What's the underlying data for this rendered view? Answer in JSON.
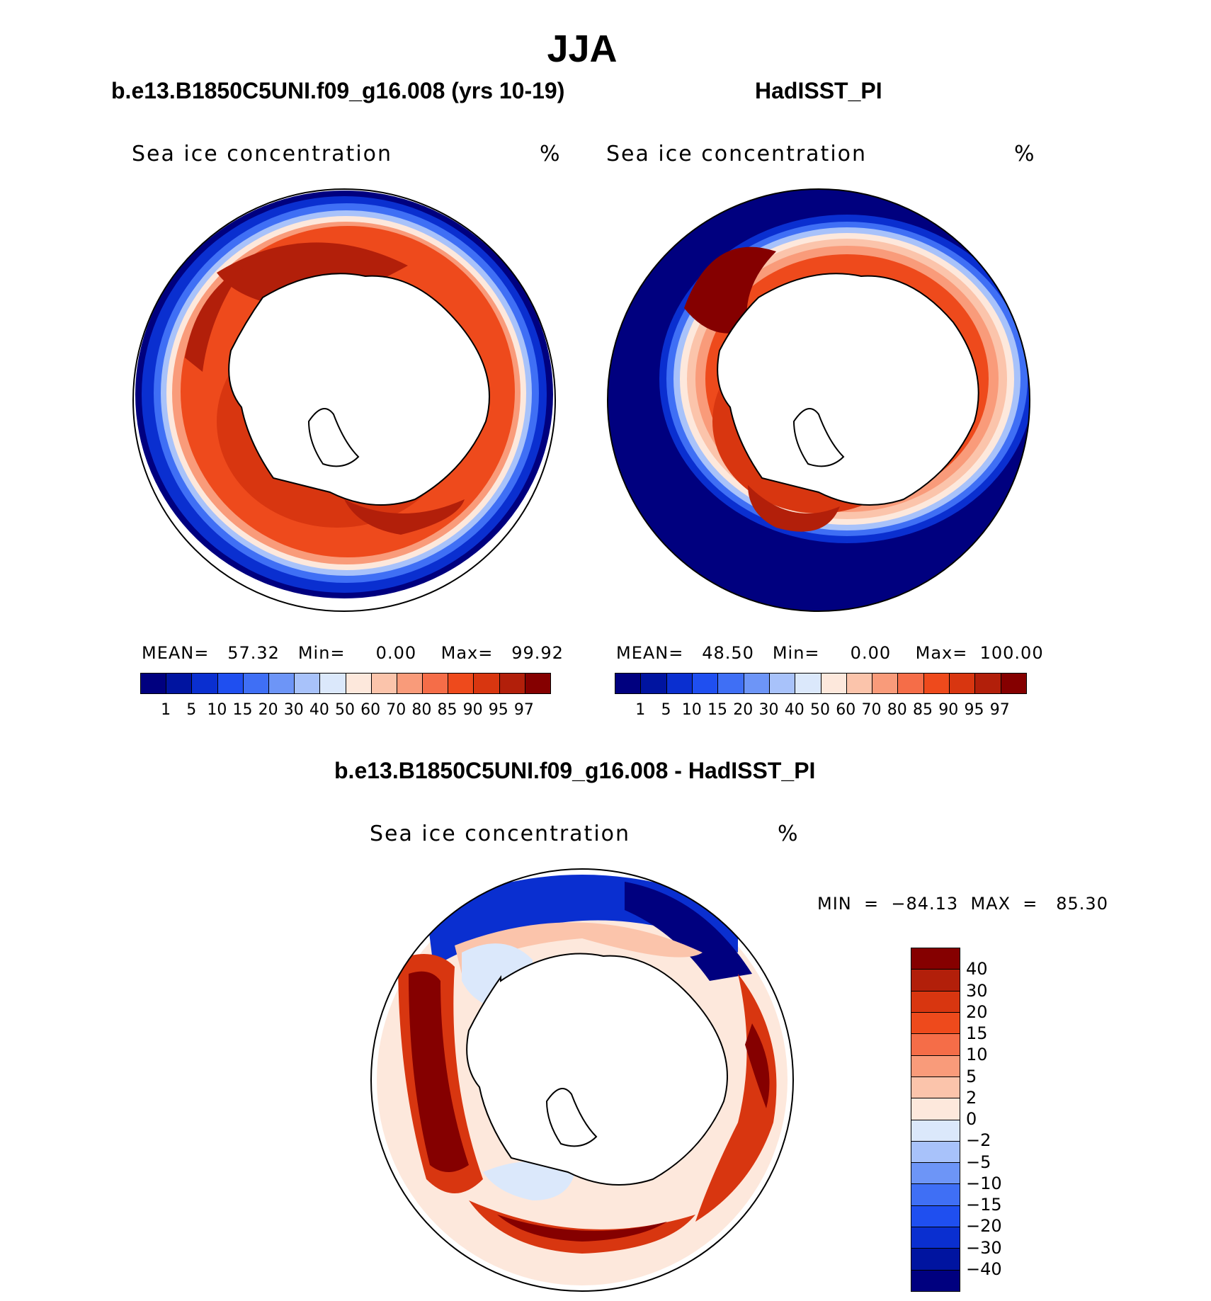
{
  "figure": {
    "title": "JJA",
    "panel_left": {
      "subtitle": "b.e13.B1850C5UNI.f09_g16.008 (yrs 10-19)",
      "variable": "Sea ice concentration",
      "units": "%",
      "stats": "MEAN=   57.32   Min=     0.00    Max=   99.92"
    },
    "panel_right": {
      "subtitle": "HadISST_PI",
      "variable": "Sea ice concentration",
      "units": "%",
      "stats": "MEAN=   48.50   Min=     0.00    Max=  100.00"
    },
    "panel_diff": {
      "subtitle": "b.e13.B1850C5UNI.f09_g16.008 - HadISST_PI",
      "variable": "Sea ice concentration",
      "units": "%",
      "stats": "MIN  =  −84.13  MAX  =   85.30"
    }
  },
  "colorbar_abs": {
    "ticks": [
      "1",
      "5",
      "10",
      "15",
      "20",
      "30",
      "40",
      "50",
      "60",
      "70",
      "80",
      "85",
      "90",
      "95",
      "97"
    ],
    "colors": [
      "#00007f",
      "#0014a0",
      "#0a2fd0",
      "#1f4ff0",
      "#3f6ff5",
      "#6d95f7",
      "#a8c2fa",
      "#dbe8fb",
      "#fde8dc",
      "#fbc4ab",
      "#f99b7a",
      "#f56d48",
      "#ee4a1c",
      "#d83610",
      "#b21f0a",
      "#850000"
    ]
  },
  "colorbar_diff": {
    "ticks": [
      "40",
      "30",
      "20",
      "15",
      "10",
      "5",
      "2",
      "0",
      "−2",
      "−5",
      "−10",
      "−15",
      "−20",
      "−30",
      "−40"
    ],
    "colors": [
      "#850000",
      "#b21f0a",
      "#d83610",
      "#ee4a1c",
      "#f56d48",
      "#f99b7a",
      "#fbc4ab",
      "#fde8dc",
      "#dbe8fb",
      "#a8c2fa",
      "#6d95f7",
      "#3f6ff5",
      "#1f4ff0",
      "#0a2fd0",
      "#0014a0",
      "#00007f"
    ]
  }
}
